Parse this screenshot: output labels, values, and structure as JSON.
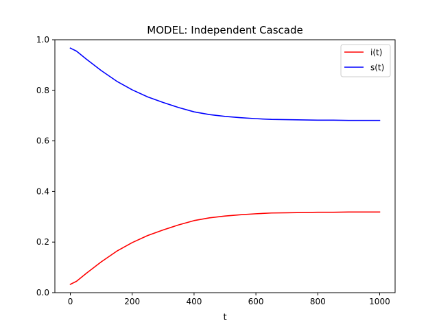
{
  "chart_data": {
    "type": "line",
    "title": "MODEL: Independent Cascade",
    "xlabel": "t",
    "ylabel": "",
    "xlim": [
      -50,
      1050
    ],
    "ylim": [
      0,
      1.0
    ],
    "xticks": [
      0,
      200,
      400,
      600,
      800,
      1000
    ],
    "yticks": [
      0.0,
      0.2,
      0.4,
      0.6,
      0.8,
      1.0
    ],
    "xtick_labels": [
      "0",
      "200",
      "400",
      "600",
      "800",
      "1000"
    ],
    "ytick_labels": [
      "0.0",
      "0.2",
      "0.4",
      "0.6",
      "0.8",
      "1.0"
    ],
    "grid": false,
    "legend_position": "top-right",
    "series": [
      {
        "name": "i(t)",
        "color": "#ff0000",
        "x": [
          0,
          20,
          50,
          100,
          150,
          200,
          250,
          300,
          350,
          400,
          450,
          500,
          550,
          600,
          650,
          700,
          750,
          800,
          850,
          900,
          950,
          1000
        ],
        "y": [
          0.033,
          0.045,
          0.075,
          0.122,
          0.164,
          0.198,
          0.226,
          0.248,
          0.268,
          0.285,
          0.296,
          0.303,
          0.308,
          0.312,
          0.315,
          0.316,
          0.317,
          0.318,
          0.318,
          0.319,
          0.319,
          0.319
        ]
      },
      {
        "name": "s(t)",
        "color": "#0000ff",
        "x": [
          0,
          20,
          50,
          100,
          150,
          200,
          250,
          300,
          350,
          400,
          450,
          500,
          550,
          600,
          650,
          700,
          750,
          800,
          850,
          900,
          950,
          1000
        ],
        "y": [
          0.967,
          0.955,
          0.925,
          0.878,
          0.836,
          0.802,
          0.774,
          0.752,
          0.732,
          0.715,
          0.704,
          0.697,
          0.692,
          0.688,
          0.685,
          0.684,
          0.683,
          0.682,
          0.682,
          0.681,
          0.681,
          0.681
        ]
      }
    ]
  }
}
